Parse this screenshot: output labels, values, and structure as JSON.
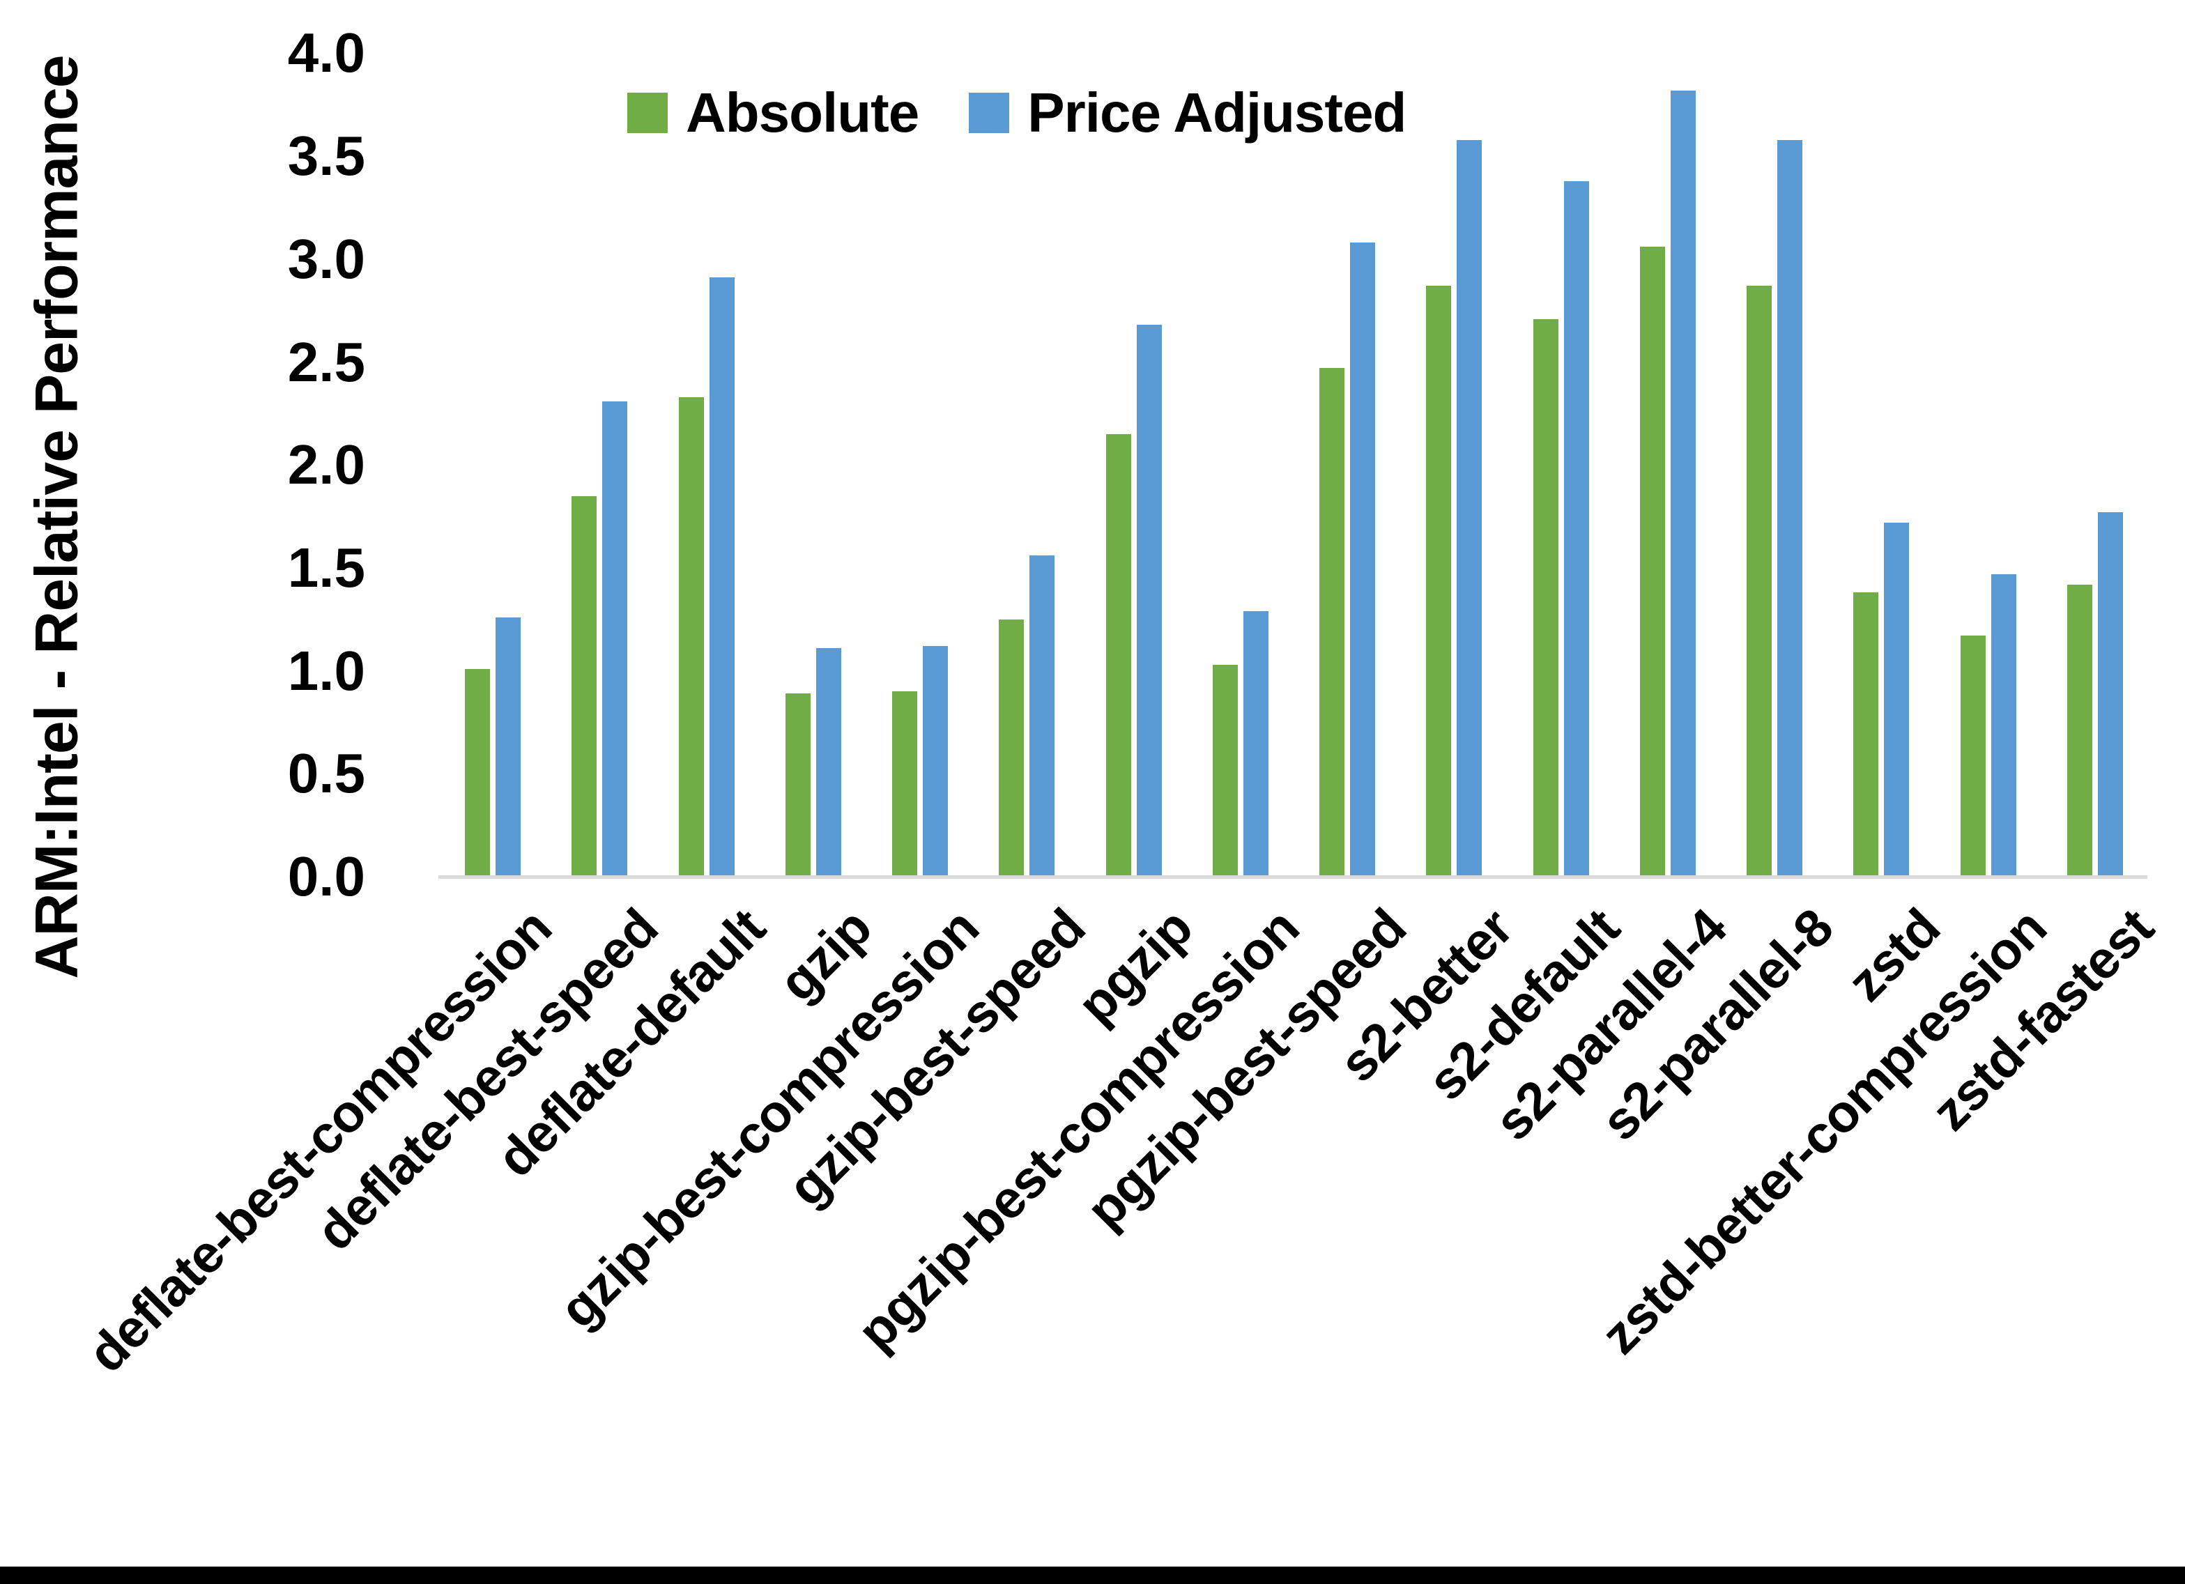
{
  "chart_data": {
    "type": "bar",
    "title": "",
    "xlabel": "",
    "ylabel": "ARM:Intel - Relative Performance",
    "ylim": [
      0.0,
      4.0
    ],
    "ytick_step": 0.5,
    "yticks": [
      "0.0",
      "0.5",
      "1.0",
      "1.5",
      "2.0",
      "2.5",
      "3.0",
      "3.5",
      "4.0"
    ],
    "grid": false,
    "legend_position": "top-center",
    "axis_line_color": "#d9d9d9",
    "text_color": "#000000",
    "categories": [
      "deflate-best-compression",
      "deflate-best-speed",
      "deflate-default",
      "gzip",
      "gzip-best-compression",
      "gzip-best-speed",
      "pgzip",
      "pgzip-best-compression",
      "pgzip-best-speed",
      "s2-better",
      "s2-default",
      "s2-parallel-4",
      "s2-parallel-8",
      "zstd",
      "zstd-better-compression",
      "zstd-fastest"
    ],
    "series": [
      {
        "name": "Absolute",
        "color": "#70AD47",
        "values": [
          1.01,
          1.85,
          2.33,
          0.89,
          0.9,
          1.25,
          2.15,
          1.03,
          2.47,
          2.87,
          2.71,
          3.06,
          2.87,
          1.38,
          1.17,
          1.42
        ]
      },
      {
        "name": "Price Adjusted",
        "color": "#5B9BD5",
        "values": [
          1.26,
          2.31,
          2.91,
          1.11,
          1.12,
          1.56,
          2.68,
          1.29,
          3.08,
          3.58,
          3.38,
          3.82,
          3.58,
          1.72,
          1.47,
          1.77
        ]
      }
    ]
  }
}
